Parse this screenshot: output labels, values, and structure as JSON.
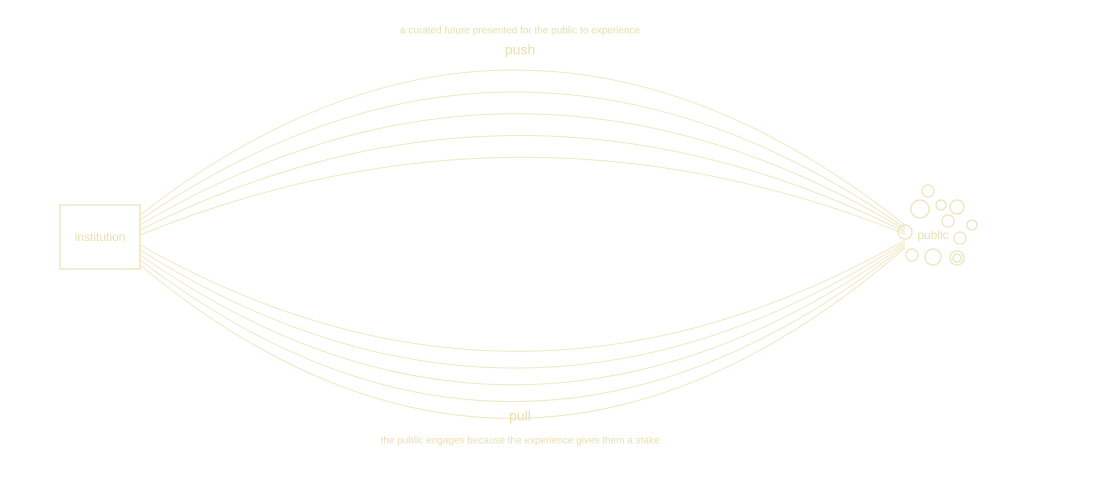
{
  "nodes": [
    {
      "label": "institution"
    },
    {
      "label": "public"
    }
  ],
  "push": {
    "label": "push",
    "caption": "a curated future presented for the public to experience"
  },
  "pull": {
    "label": "pull",
    "caption": "the public engages because the experience gives them a stake"
  }
}
